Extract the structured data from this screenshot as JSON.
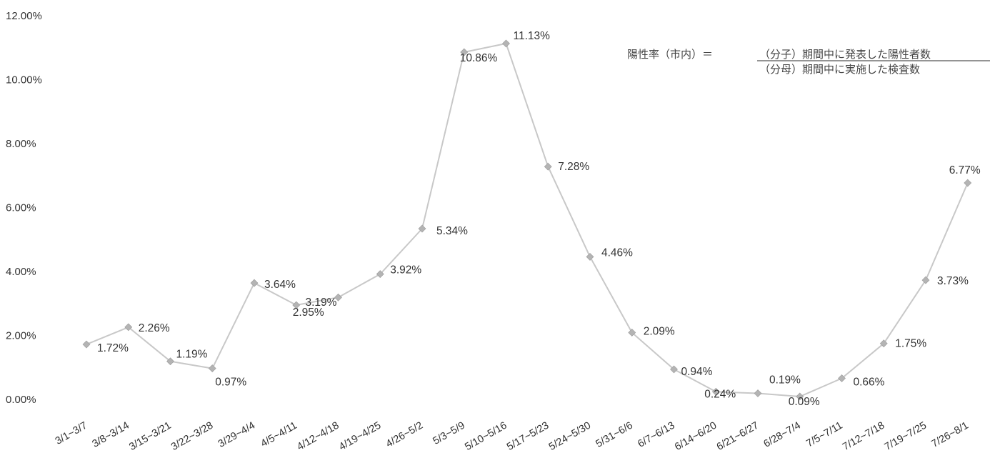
{
  "chart_data": {
    "type": "line",
    "title": "",
    "xlabel": "",
    "ylabel": "",
    "ylim": [
      0,
      12
    ],
    "grid": false,
    "yticks": [
      "0.00%",
      "2.00%",
      "4.00%",
      "6.00%",
      "8.00%",
      "10.00%",
      "12.00%"
    ],
    "categories": [
      "3/1~3/7",
      "3/8~3/14",
      "3/15~3/21",
      "3/22~3/28",
      "3/29~4/4",
      "4/5~4/11",
      "4/12~4/18",
      "4/19~4/25",
      "4/26~5/2",
      "5/3~5/9",
      "5/10~5/16",
      "5/17~5/23",
      "5/24~5/30",
      "5/31~6/6",
      "6/7~6/13",
      "6/14~6/20",
      "6/21~6/27",
      "6/28~7/4",
      "7/5~7/11",
      "7/12~7/18",
      "7/19~7/25",
      "7/26~8/1"
    ],
    "values": [
      1.72,
      2.26,
      1.19,
      0.97,
      3.64,
      2.95,
      3.19,
      3.92,
      5.34,
      10.86,
      11.13,
      7.28,
      4.46,
      2.09,
      0.94,
      0.24,
      0.19,
      0.09,
      0.66,
      1.75,
      3.73,
      6.77
    ],
    "data_labels": [
      "1.72%",
      "2.26%",
      "1.19%",
      "0.97%",
      "3.64%",
      "2.95%",
      "3.19%",
      "3.92%",
      "5.34%",
      "10.86%",
      "11.13%",
      "7.28%",
      "4.46%",
      "2.09%",
      "0.94%",
      "0.24%",
      "0.19%",
      "0.09%",
      "0.66%",
      "1.75%",
      "3.73%",
      "6.77%"
    ],
    "colors": {
      "line": "#c8c8c8",
      "marker": "#b4b4b4",
      "text": "#333333"
    }
  },
  "formula": {
    "lhs": "陽性率（市内）＝",
    "numerator": "（分子）期間中に発表した陽性者数",
    "denominator": "（分母）期間中に実施した検査数"
  }
}
